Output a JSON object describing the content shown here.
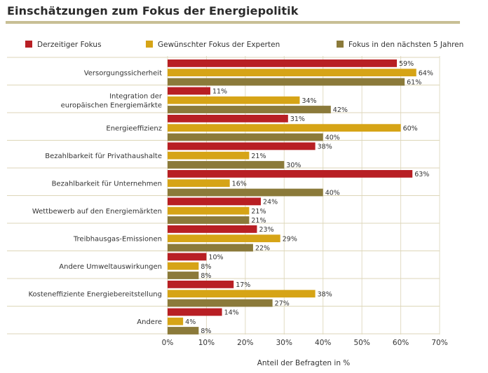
{
  "chart_data": {
    "type": "bar",
    "title": "Einschätzungen zum Fokus der Energiepolitik",
    "xlabel": "Anteil der Befragten in %",
    "xlim": [
      0,
      70
    ],
    "xticks": [
      "0%",
      "10%",
      "20%",
      "30%",
      "40%",
      "50%",
      "60%",
      "70%"
    ],
    "orientation": "horizontal",
    "legend_position": "top",
    "categories": [
      "Versorgungssicherheit",
      "Integration der\neuropäischen Energiemärkte",
      "Energieeffizienz",
      "Bezahlbarkeit für Privathaushalte",
      "Bezahlbarkeit für Unternehmen",
      "Wettbewerb auf den Energiemärkten",
      "Treibhausgas-Emissionen",
      "Andere Umweltauswirkungen",
      "Kosteneffiziente Energiebereitstellung",
      "Andere"
    ],
    "series": [
      {
        "name": "Derzeitiger Fokus",
        "color": "#b81f24",
        "values": [
          59,
          11,
          31,
          38,
          63,
          24,
          23,
          10,
          17,
          14
        ],
        "labels": [
          "59%",
          "11%",
          "31%",
          "38%",
          "63%",
          "24%",
          "23%",
          "10%",
          "17%",
          "14%"
        ]
      },
      {
        "name": "Gewünschter Fokus der Experten",
        "color": "#d6a416",
        "values": [
          64,
          34,
          60,
          21,
          16,
          21,
          29,
          8,
          38,
          4
        ],
        "labels": [
          "64%",
          "34%",
          "60%",
          "21%",
          "16%",
          "21%",
          "29%",
          "8%",
          "38%",
          "4%"
        ]
      },
      {
        "name": "Fokus in den nächsten 5 Jahren",
        "color": "#8b7a3a",
        "values": [
          61,
          42,
          40,
          30,
          40,
          21,
          22,
          8,
          27,
          8
        ],
        "labels": [
          "61%",
          "42%",
          "40%",
          "30%",
          "40%",
          "21%",
          "22%",
          "8%",
          "27%",
          "8%"
        ]
      }
    ]
  }
}
